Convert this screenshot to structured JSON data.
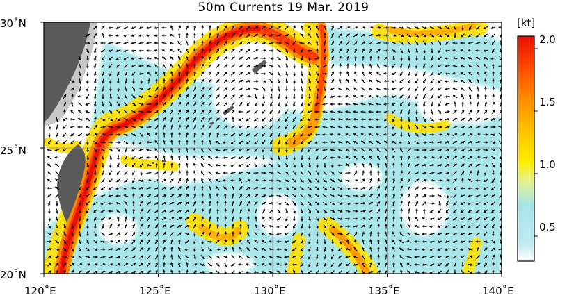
{
  "title": "50m Currents  19 Mar. 2019",
  "map": {
    "lon_range": [
      120,
      140
    ],
    "lat_range": [
      20,
      30
    ],
    "x_ticks": [
      "120˚E",
      "125˚E",
      "130˚E",
      "135˚E",
      "140˚E"
    ],
    "y_ticks": [
      "30˚N",
      "25˚N",
      "20˚N"
    ],
    "grid": true,
    "land_color": "#5a5a5a",
    "shelf_color": "#c8c8c8",
    "arrow_color": "#000000"
  },
  "colorbar": {
    "unit": "[kt]",
    "ticks": [
      "2.0",
      "1.5",
      "1.0",
      "0.5"
    ],
    "tick_values": [
      2.0,
      1.5,
      1.0,
      0.5
    ],
    "range": [
      0.3,
      2.1
    ],
    "stops": [
      {
        "value": 0.3,
        "color": "#ffffff"
      },
      {
        "value": 0.45,
        "color": "#bfeaf2"
      },
      {
        "value": 0.75,
        "color": "#a8e6ea"
      },
      {
        "value": 0.95,
        "color": "#e8f28c"
      },
      {
        "value": 1.1,
        "color": "#ffee00"
      },
      {
        "value": 1.35,
        "color": "#ffc000"
      },
      {
        "value": 1.6,
        "color": "#ff8c00"
      },
      {
        "value": 1.85,
        "color": "#ff4a00"
      },
      {
        "value": 2.1,
        "color": "#e81000"
      }
    ]
  }
}
